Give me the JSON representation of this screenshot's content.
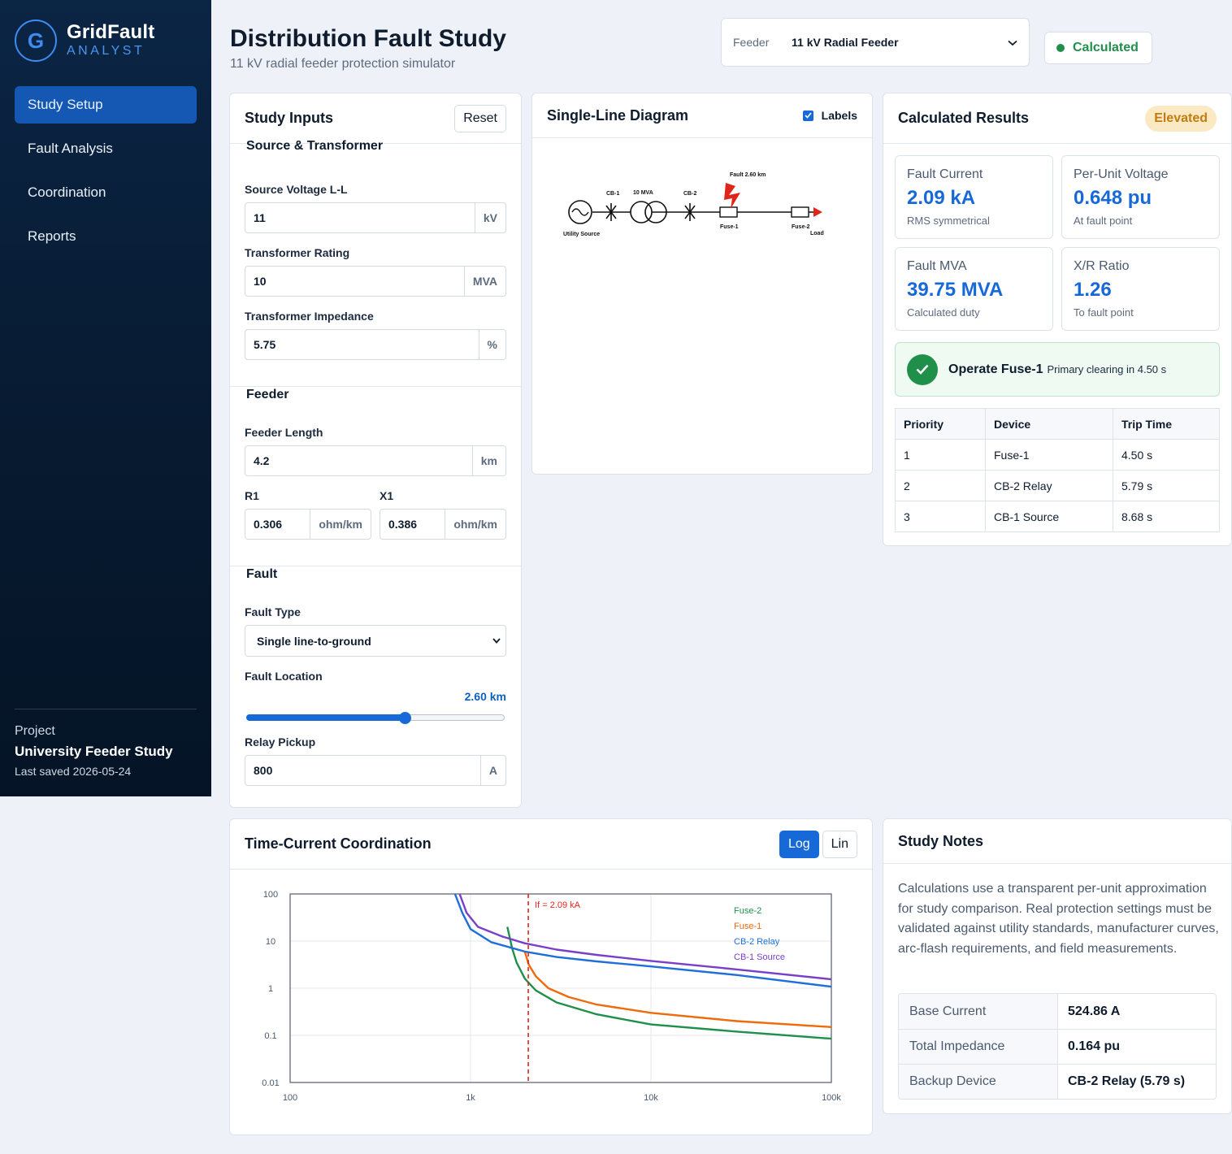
{
  "brand": {
    "logo_letter": "G",
    "name": "GridFault",
    "subtitle": "ANALYST"
  },
  "nav": {
    "items": [
      {
        "label": "Study Setup",
        "active": true
      },
      {
        "label": "Fault Analysis"
      },
      {
        "label": "Coordination"
      },
      {
        "label": "Reports"
      }
    ]
  },
  "project": {
    "label": "Project",
    "name": "University Feeder Study",
    "saved": "Last saved 2026-05-24"
  },
  "header": {
    "title": "Distribution Fault Study",
    "subtitle": "11 kV radial feeder protection simulator",
    "feeder_label": "Feeder",
    "feeder_value": "11 kV Radial Feeder",
    "status": "Calculated"
  },
  "inputs": {
    "title": "Study Inputs",
    "reset": "Reset",
    "source_section": "Source & Transformer",
    "source_voltage_label": "Source Voltage L-L",
    "source_voltage": "11",
    "source_voltage_unit": "kV",
    "tx_rating_label": "Transformer Rating",
    "tx_rating": "10",
    "tx_rating_unit": "MVA",
    "tx_impedance_label": "Transformer Impedance",
    "tx_impedance": "5.75",
    "tx_impedance_unit": "%",
    "feeder_section": "Feeder",
    "feeder_length_label": "Feeder Length",
    "feeder_length": "4.2",
    "feeder_length_unit": "km",
    "r1_label": "R1",
    "r1": "0.306",
    "r1_unit": "ohm/km",
    "x1_label": "X1",
    "x1": "0.386",
    "x1_unit": "ohm/km",
    "fault_section": "Fault",
    "fault_type_label": "Fault Type",
    "fault_type": "Single line-to-ground",
    "fault_location_label": "Fault Location",
    "fault_location": "2.60 km",
    "fault_location_fraction": 0.619,
    "relay_pickup_label": "Relay Pickup",
    "relay_pickup": "800",
    "relay_pickup_unit": "A"
  },
  "sld": {
    "title": "Single-Line Diagram",
    "labels_toggle": "Labels",
    "labels_checked": true,
    "fault_label": "Fault 2.60 km",
    "cb1": "CB-1",
    "tx": "10 MVA",
    "cb2": "CB-2",
    "utility": "Utility Source",
    "fuse1": "Fuse-1",
    "fuse2": "Fuse-2",
    "load": "Load",
    "colors": {
      "fault": "#e0261b",
      "line": "#111111"
    }
  },
  "results": {
    "title": "Calculated Results",
    "badge": "Elevated",
    "fault_current_label": "Fault Current",
    "fault_current": "2.09 kA",
    "fault_current_sub": "RMS symmetrical",
    "pu_voltage_label": "Per-Unit Voltage",
    "pu_voltage": "0.648 pu",
    "pu_voltage_sub": "At fault point",
    "fault_mva_label": "Fault MVA",
    "fault_mva": "39.75 MVA",
    "fault_mva_sub": "Calculated duty",
    "xr_label": "X/R Ratio",
    "xr": "1.26",
    "xr_sub": "To fault point",
    "operate_title": "Operate Fuse-1",
    "operate_sub": "Primary clearing in 4.50 s",
    "table_headers": [
      "Priority",
      "Device",
      "Trip Time"
    ],
    "table_rows": [
      [
        "1",
        "Fuse-1",
        "4.50 s"
      ],
      [
        "2",
        "CB-2 Relay",
        "5.79 s"
      ],
      [
        "3",
        "CB-1 Source",
        "8.68 s"
      ]
    ]
  },
  "tcc": {
    "title": "Time-Current Coordination",
    "log_label": "Log",
    "lin_label": "Lin"
  },
  "chart_data": {
    "type": "line",
    "x_scale": "log",
    "y_scale": "log",
    "xlim": [
      100,
      100000
    ],
    "ylim": [
      0.01,
      100
    ],
    "x_tick_labels": [
      "100",
      "1k",
      "10k",
      "100k"
    ],
    "y_tick_labels": [
      "100",
      "10",
      "1",
      "0.1",
      "0.01"
    ],
    "grid": true,
    "legend": "top-right",
    "marker": {
      "x": 2090,
      "label": "If = 2.09 kA",
      "color": "#e0261b"
    },
    "series": [
      {
        "name": "Fuse-2",
        "color": "#1f8f4a",
        "x": [
          1600,
          1700,
          1800,
          2000,
          2300,
          3000,
          5000,
          10000,
          30000,
          100000
        ],
        "y": [
          20,
          7,
          3.5,
          1.6,
          0.9,
          0.5,
          0.28,
          0.17,
          0.12,
          0.085
        ]
      },
      {
        "name": "Fuse-1",
        "color": "#ee6a0c",
        "x": [
          2000,
          2100,
          2300,
          2700,
          3500,
          5000,
          10000,
          30000,
          100000
        ],
        "y": [
          6,
          3.2,
          1.8,
          1.0,
          0.65,
          0.45,
          0.3,
          0.2,
          0.15
        ]
      },
      {
        "name": "CB-2 Relay",
        "color": "#1f6fd8",
        "x": [
          820,
          900,
          1000,
          1300,
          2000,
          3000,
          5000,
          10000,
          30000,
          100000
        ],
        "y": [
          100,
          40,
          18,
          9.5,
          6,
          4.6,
          3.7,
          2.9,
          1.9,
          1.08
        ]
      },
      {
        "name": "CB-1 Source",
        "color": "#7a3fc8",
        "x": [
          870,
          950,
          1100,
          1500,
          2000,
          3000,
          5000,
          10000,
          30000,
          100000
        ],
        "y": [
          100,
          40,
          20,
          12.5,
          9,
          6.6,
          5.1,
          3.8,
          2.5,
          1.55
        ]
      }
    ]
  },
  "notes": {
    "title": "Study Notes",
    "text": "Calculations use a transparent per-unit approximation for study comparison. Real protection settings must be validated against utility standards, manufacturer curves, arc-flash requirements, and field measurements.",
    "rows": [
      {
        "k": "Base Current",
        "v": "524.86 A"
      },
      {
        "k": "Total Impedance",
        "v": "0.164 pu"
      },
      {
        "k": "Backup Device",
        "v": "CB-2 Relay (5.79 s)"
      }
    ]
  }
}
